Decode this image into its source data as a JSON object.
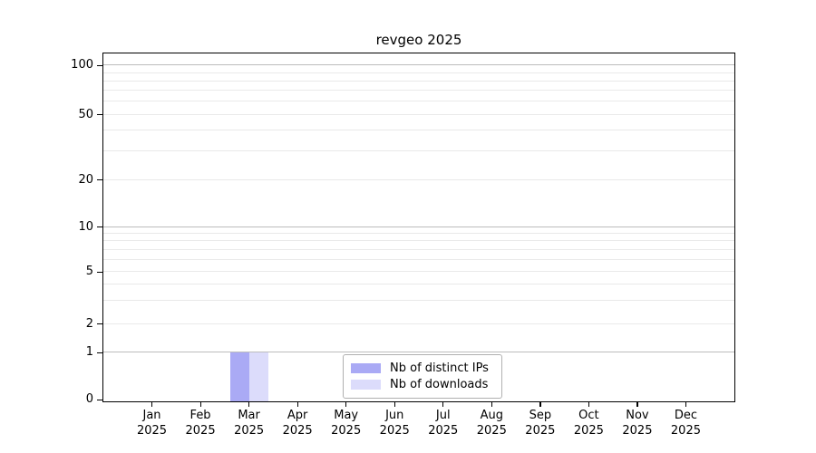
{
  "chart_data": {
    "type": "bar",
    "title": "revgeo 2025",
    "categories": [
      "Jan 2025",
      "Feb 2025",
      "Mar 2025",
      "Apr 2025",
      "May 2025",
      "Jun 2025",
      "Jul 2025",
      "Aug 2025",
      "Sep 2025",
      "Oct 2025",
      "Nov 2025",
      "Dec 2025"
    ],
    "xlabel": "",
    "ylabel": "",
    "ylim": [
      0,
      115
    ],
    "y_scale": "log-like with ticks 0,1,2,5,10,20,50,100",
    "grid": "horizontal gridlines on, log minor gridlines",
    "legend_position": "lower center",
    "series": [
      {
        "name": "Nb of distinct IPs",
        "color": "#aaaaf5",
        "values": [
          0,
          0,
          1,
          0,
          0,
          0,
          0,
          0,
          0,
          0,
          0,
          0
        ]
      },
      {
        "name": "Nb of downloads",
        "color": "#dcdcfb",
        "values": [
          0,
          0,
          1,
          0,
          0,
          0,
          0,
          0,
          0,
          0,
          0,
          0
        ]
      }
    ],
    "yticks": [
      {
        "value": 0,
        "frac": 0.005,
        "grid": "none"
      },
      {
        "value": 1,
        "frac": 0.14,
        "grid": "major"
      },
      {
        "value": 2,
        "frac": 0.222,
        "grid": "minor"
      },
      {
        "value": 5,
        "frac": 0.372,
        "grid": "minor"
      },
      {
        "value": 10,
        "frac": 0.501,
        "grid": "major"
      },
      {
        "value": 20,
        "frac": 0.636,
        "grid": "minor"
      },
      {
        "value": 50,
        "frac": 0.824,
        "grid": "minor"
      },
      {
        "value": 100,
        "frac": 0.966,
        "grid": "major"
      }
    ],
    "minor_gridlines": [
      {
        "value": 3,
        "frac": 0.288
      },
      {
        "value": 4,
        "frac": 0.336
      },
      {
        "value": 6,
        "frac": 0.406
      },
      {
        "value": 7,
        "frac": 0.435
      },
      {
        "value": 8,
        "frac": 0.46
      },
      {
        "value": 9,
        "frac": 0.481
      },
      {
        "value": 30,
        "frac": 0.719
      },
      {
        "value": 40,
        "frac": 0.778
      },
      {
        "value": 60,
        "frac": 0.861
      },
      {
        "value": 70,
        "frac": 0.893
      },
      {
        "value": 80,
        "frac": 0.92
      },
      {
        "value": 90,
        "frac": 0.944
      }
    ],
    "colors": {
      "bar_distinct_ips": "#aaaaf5",
      "bar_downloads": "#dcdcfb",
      "gridline_major": "#bcbcbc",
      "gridline_minor": "#e9e9e9",
      "axis_and_text": "#000000",
      "legend_border": "#b0b0b0",
      "background": "#ffffff"
    }
  }
}
